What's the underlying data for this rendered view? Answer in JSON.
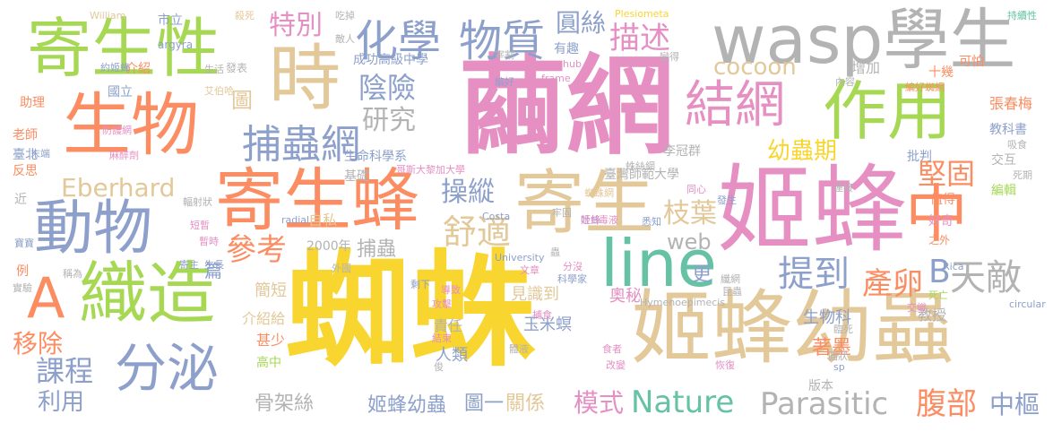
{
  "words": [
    {
      "text": "蜘蛛",
      "color": "#f9d52f",
      "vertical": false
    },
    {
      "text": "繭網",
      "color": "#e58fc3",
      "vertical": false
    },
    {
      "text": "姬蜂",
      "color": "#e58fc3",
      "vertical": false
    },
    {
      "text": "姬蜂幼蟲",
      "color": "#e3c899",
      "vertical": false
    },
    {
      "text": "wasp學生",
      "color": "#b3b3b3",
      "vertical": false
    },
    {
      "text": "寄生蜂",
      "color": "#fc8d62",
      "vertical": false
    },
    {
      "text": "寄生",
      "color": "#e3c899",
      "vertical": false
    },
    {
      "text": "寄生性",
      "color": "#a6d854",
      "vertical": false
    },
    {
      "text": "生物",
      "color": "#fc8d62",
      "vertical": false
    },
    {
      "text": "時",
      "color": "#e3c899",
      "vertical": false
    },
    {
      "text": "作用",
      "color": "#a6d854",
      "vertical": false
    },
    {
      "text": "中",
      "color": "#fc8d62",
      "vertical": false
    },
    {
      "text": "織造",
      "color": "#a6d854",
      "vertical": false
    },
    {
      "text": "動物",
      "color": "#8da0cb",
      "vertical": false
    },
    {
      "text": "line",
      "color": "#66c2a5",
      "vertical": false
    },
    {
      "text": "結網",
      "color": "#e58fc3",
      "vertical": false
    },
    {
      "text": "A",
      "color": "#fc8d62",
      "vertical": false
    },
    {
      "text": "分泌",
      "color": "#8da0cb",
      "vertical": false
    },
    {
      "text": "捕蟲網",
      "color": "#8da0cb",
      "vertical": false
    },
    {
      "text": "化學",
      "color": "#8da0cb",
      "vertical": false
    },
    {
      "text": "物質",
      "color": "#8da0cb",
      "vertical": false
    },
    {
      "text": "特別",
      "color": "#e58fc3",
      "vertical": false
    },
    {
      "text": "圓絲",
      "color": "#8da0cb",
      "vertical": false
    },
    {
      "text": "描述",
      "color": "#e58fc3",
      "vertical": false
    },
    {
      "text": "cocoon",
      "color": "#e3c899",
      "vertical": false
    },
    {
      "text": "陰險",
      "color": "#8da0cb",
      "vertical": false
    },
    {
      "text": "研究",
      "color": "#b3b3b3",
      "vertical": false
    },
    {
      "text": "Eberhard",
      "color": "#e3c899",
      "vertical": false
    },
    {
      "text": "操縱",
      "color": "#8da0cb",
      "vertical": false
    },
    {
      "text": "堅固",
      "color": "#fc8d62",
      "vertical": false
    },
    {
      "text": "幼蟲期",
      "color": "#f9d52f",
      "vertical": false
    },
    {
      "text": "枝葉",
      "color": "#e3c899",
      "vertical": false
    },
    {
      "text": "舒適",
      "color": "#e3c899",
      "vertical": false
    },
    {
      "text": "web",
      "color": "#b3b3b3",
      "vertical": false
    },
    {
      "text": "參考",
      "color": "#fc8d62",
      "vertical": false
    },
    {
      "text": "捕蟲",
      "color": "#b3b3b3",
      "vertical": false
    },
    {
      "text": "提到",
      "color": "#8da0cb",
      "vertical": false
    },
    {
      "text": "產卵",
      "color": "#fc8d62",
      "vertical": false
    },
    {
      "text": "B",
      "color": "#8da0cb",
      "vertical": false
    },
    {
      "text": "天敵",
      "color": "#b3b3b3",
      "vertical": false
    },
    {
      "text": "更",
      "color": "#8da0cb",
      "vertical": false
    },
    {
      "text": "課程",
      "color": "#8da0cb",
      "vertical": false
    },
    {
      "text": "移除",
      "color": "#fc8d62",
      "vertical": false
    },
    {
      "text": "利用",
      "color": "#8da0cb",
      "vertical": false
    },
    {
      "text": "骨架絲",
      "color": "#b3b3b3",
      "vertical": false
    },
    {
      "text": "姬蜂幼蟲",
      "color": "#8da0cb",
      "vertical": false
    },
    {
      "text": "圖一",
      "color": "#8da0cb",
      "vertical": false
    },
    {
      "text": "關係",
      "color": "#e3c899",
      "vertical": false
    },
    {
      "text": "模式",
      "color": "#e58fc3",
      "vertical": false
    },
    {
      "text": "Nature",
      "color": "#66c2a5",
      "vertical": false
    },
    {
      "text": "Parasitic",
      "color": "#b3b3b3",
      "vertical": false
    },
    {
      "text": "腹部",
      "color": "#fc8d62",
      "vertical": false
    },
    {
      "text": "中樞",
      "color": "#8da0cb",
      "vertical": false
    },
    {
      "text": "著墨",
      "color": "#fc8d62",
      "vertical": false
    },
    {
      "text": "奧秘",
      "color": "#e58fc3",
      "vertical": false
    },
    {
      "text": "生物科",
      "color": "#8da0cb",
      "vertical": false
    },
    {
      "text": "教授",
      "color": "#b3b3b3",
      "vertical": false
    },
    {
      "text": "版本",
      "color": "#b3b3b3",
      "vertical": false
    },
    {
      "text": "玉米螟",
      "color": "#8da0cb",
      "vertical": false
    },
    {
      "text": "責任",
      "color": "#b3b3b3",
      "vertical": false
    },
    {
      "text": "人類",
      "color": "#8da0cb",
      "vertical": false
    },
    {
      "text": "見識到",
      "color": "#e3c899",
      "vertical": false
    },
    {
      "text": "2000年",
      "color": "#b3b3b3",
      "vertical": false
    },
    {
      "text": "自私",
      "color": "#e3c899",
      "vertical": false
    },
    {
      "text": "圖",
      "color": "#e3c899",
      "vertical": false
    },
    {
      "text": "篇",
      "color": "#8da0cb",
      "vertical": false
    },
    {
      "text": "簡短",
      "color": "#e3c899",
      "vertical": false
    },
    {
      "text": "介紹給",
      "color": "#e3c899",
      "vertical": false
    },
    {
      "text": "甚少",
      "color": "#fc8d62",
      "vertical": false
    },
    {
      "text": "高中",
      "color": "#a6d854",
      "vertical": false
    },
    {
      "text": "增加",
      "color": "#b3b3b3",
      "vertical": false
    },
    {
      "text": "十幾",
      "color": "#fc8d62",
      "vertical": false
    },
    {
      "text": "張春梅",
      "color": "#fc8d62",
      "vertical": false
    },
    {
      "text": "教科書",
      "color": "#8da0cb",
      "vertical": false
    },
    {
      "text": "批判",
      "color": "#8da0cb",
      "vertical": false
    },
    {
      "text": "交互",
      "color": "#b3b3b3",
      "vertical": false
    },
    {
      "text": "編輯",
      "color": "#a6d854",
      "vertical": false
    },
    {
      "text": "值得",
      "color": "#fc8d62",
      "vertical": false
    },
    {
      "text": "好奇",
      "color": "#e58fc3",
      "vertical": false
    },
    {
      "text": "之外",
      "color": "#fc8d62",
      "vertical": false
    },
    {
      "text": "成功高級中學",
      "color": "#8da0cb",
      "vertical": false
    },
    {
      "text": "有趣",
      "color": "#8da0cb",
      "vertical": false
    },
    {
      "text": "生命科學系",
      "color": "#8da0cb",
      "vertical": false
    },
    {
      "text": "臺灣師範大學",
      "color": "#b3b3b3",
      "vertical": false
    },
    {
      "text": "李冠群",
      "color": "#b3b3b3",
      "vertical": false
    },
    {
      "text": "基礎",
      "color": "#b3b3b3",
      "vertical": false
    },
    {
      "text": "哥斯大黎加大學",
      "color": "#e58fc3",
      "vertical": false
    },
    {
      "text": "國立",
      "color": "#8da0cb",
      "vertical": false
    },
    {
      "text": "助理",
      "color": "#fc8d62",
      "vertical": false
    },
    {
      "text": "老師",
      "color": "#fc8d62",
      "vertical": false
    },
    {
      "text": "臺北",
      "color": "#8da0cb",
      "vertical": false
    },
    {
      "text": "反思",
      "color": "#fc8d62",
      "vertical": false
    },
    {
      "text": "介紹",
      "color": "#fc8d62",
      "vertical": false
    },
    {
      "text": "市立",
      "color": "#8da0cb",
      "vertical": false
    },
    {
      "text": "可怕",
      "color": "#fc8d62",
      "vertical": false
    },
    {
      "text": "持續性",
      "color": "#66c2a5",
      "vertical": false
    },
    {
      "text": "William",
      "color": "#e3c899",
      "vertical": false
    },
    {
      "text": "Plesiometa",
      "color": "#f9d52f",
      "vertical": false
    },
    {
      "text": "argyra",
      "color": "#8da0cb",
      "vertical": false
    },
    {
      "text": "hub",
      "color": "#e58fc3",
      "vertical": false
    },
    {
      "text": "frame",
      "color": "#e58fc3",
      "vertical": false
    },
    {
      "text": "Costa",
      "color": "#8da0cb",
      "vertical": false
    },
    {
      "text": "University",
      "color": "#8da0cb",
      "vertical": false
    },
    {
      "text": "radial",
      "color": "#8da0cb",
      "vertical": false
    },
    {
      "text": "Rica",
      "color": "#8da0cb",
      "vertical": false
    },
    {
      "text": "sp",
      "color": "#8da0cb",
      "vertical": false
    },
    {
      "text": "circular",
      "color": "#8da0cb",
      "vertical": false
    },
    {
      "text": "Hymenoepimecis",
      "color": "#b3b3b3",
      "vertical": false
    },
    {
      "text": "發表",
      "color": "#b3b3b3",
      "vertical": false
    },
    {
      "text": "生活",
      "color": "#b3b3b3",
      "vertical": false
    },
    {
      "text": "艾伯哈",
      "color": "#e3c899",
      "vertical": false
    },
    {
      "text": "約姬蜂",
      "color": "#8da0cb",
      "vertical": false
    },
    {
      "text": "殺死",
      "color": "#e3c899",
      "vertical": false
    },
    {
      "text": "吃掉",
      "color": "#b3b3b3",
      "vertical": false
    },
    {
      "text": "敵人",
      "color": "#b3b3b3",
      "vertical": false
    },
    {
      "text": "宰割",
      "color": "#b3b3b3",
      "vertical": false
    },
    {
      "text": "變得",
      "color": "#b3b3b3",
      "vertical": false
    },
    {
      "text": "內容",
      "color": "#b3b3b3",
      "vertical": false
    },
    {
      "text": "編好蜘網",
      "color": "#fc8d62",
      "vertical": false
    },
    {
      "text": "吸食",
      "color": "#b3b3b3",
      "vertical": false
    },
    {
      "text": "死期",
      "color": "#b3b3b3",
      "vertical": false
    },
    {
      "text": "連接",
      "color": "#b3b3b3",
      "vertical": false
    },
    {
      "text": "同心",
      "color": "#e58fc3",
      "vertical": false
    },
    {
      "text": "發生",
      "color": "#8da0cb",
      "vertical": false
    },
    {
      "text": "蜘蛛網",
      "color": "#e3c899",
      "vertical": false
    },
    {
      "text": "輻射狀",
      "color": "#b3b3b3",
      "vertical": false
    },
    {
      "text": "短暫",
      "color": "#e58fc3",
      "vertical": false
    },
    {
      "text": "暫時",
      "color": "#e58fc3",
      "vertical": false
    },
    {
      "text": "寄主",
      "color": "#8da0cb",
      "vertical": false
    },
    {
      "text": "生長",
      "color": "#8da0cb",
      "vertical": false
    },
    {
      "text": "寶寶",
      "color": "#8da0cb",
      "vertical": false
    },
    {
      "text": "稱為",
      "color": "#b3b3b3",
      "vertical": false
    },
    {
      "text": "實驗",
      "color": "#b3b3b3",
      "vertical": false
    },
    {
      "text": "例",
      "color": "#fc8d62",
      "vertical": false
    },
    {
      "text": "近",
      "color": "#b3b3b3",
      "vertical": false
    },
    {
      "text": "剩下",
      "color": "#8da0cb",
      "vertical": false
    },
    {
      "text": "文章",
      "color": "#e58fc3",
      "vertical": false
    },
    {
      "text": "分沒",
      "color": "#e58fc3",
      "vertical": false
    },
    {
      "text": "科學家",
      "color": "#8da0cb",
      "vertical": false
    },
    {
      "text": "外國",
      "color": "#b3b3b3",
      "vertical": false
    },
    {
      "text": "捕食",
      "color": "#e58fc3",
      "vertical": false
    },
    {
      "text": "結束",
      "color": "#e58fc3",
      "vertical": false
    },
    {
      "text": "體液",
      "color": "#b3b3b3",
      "vertical": false
    },
    {
      "text": "食者",
      "color": "#e58fc3",
      "vertical": false
    },
    {
      "text": "改變",
      "color": "#e58fc3",
      "vertical": false
    },
    {
      "text": "恢復",
      "color": "#e58fc3",
      "vertical": false
    },
    {
      "text": "圓狀",
      "color": "#b3b3b3",
      "vertical": false
    },
    {
      "text": "臨死",
      "color": "#b3b3b3",
      "vertical": false
    },
    {
      "text": "交織",
      "color": "#e58fc3",
      "vertical": false
    },
    {
      "text": "死亡",
      "color": "#a6d854",
      "vertical": false
    },
    {
      "text": "末端",
      "color": "#8da0cb",
      "vertical": false
    },
    {
      "text": "防護網",
      "color": "#8da0cb",
      "vertical": false
    },
    {
      "text": "麻醉劑",
      "color": "#e58fc3",
      "vertical": false
    },
    {
      "text": "吐絲",
      "color": "#e58fc3",
      "vertical": false
    },
    {
      "text": "蛛絲網",
      "color": "#8da0cb",
      "vertical": false
    },
    {
      "text": "攻擊",
      "color": "#b3b3b3",
      "vertical": false
    },
    {
      "text": "導致",
      "color": "#e58fc3",
      "vertical": false
    },
    {
      "text": "俊",
      "color": "#e58fc3",
      "vertical": false
    },
    {
      "text": "纖網",
      "color": "#b3b3b3",
      "vertical": false
    },
    {
      "text": "昆蟲",
      "color": "#b3b3b3",
      "vertical": false
    },
    {
      "text": "編好",
      "color": "#b3b3b3",
      "vertical": false
    },
    {
      "text": "牢固",
      "color": "#8da0cb",
      "vertical": false
    },
    {
      "text": "蟲",
      "color": "#b3b3b3",
      "vertical": false
    },
    {
      "text": "姬蜂",
      "color": "#b3b3b3",
      "vertical": false
    },
    {
      "text": "毒液",
      "color": "#e58fc3",
      "vertical": false
    },
    {
      "text": "悉知",
      "color": "#e58fc3",
      "vertical": false
    },
    {
      "text": "知覺",
      "color": "#8da0cb",
      "vertical": false
    }
  ]
}
